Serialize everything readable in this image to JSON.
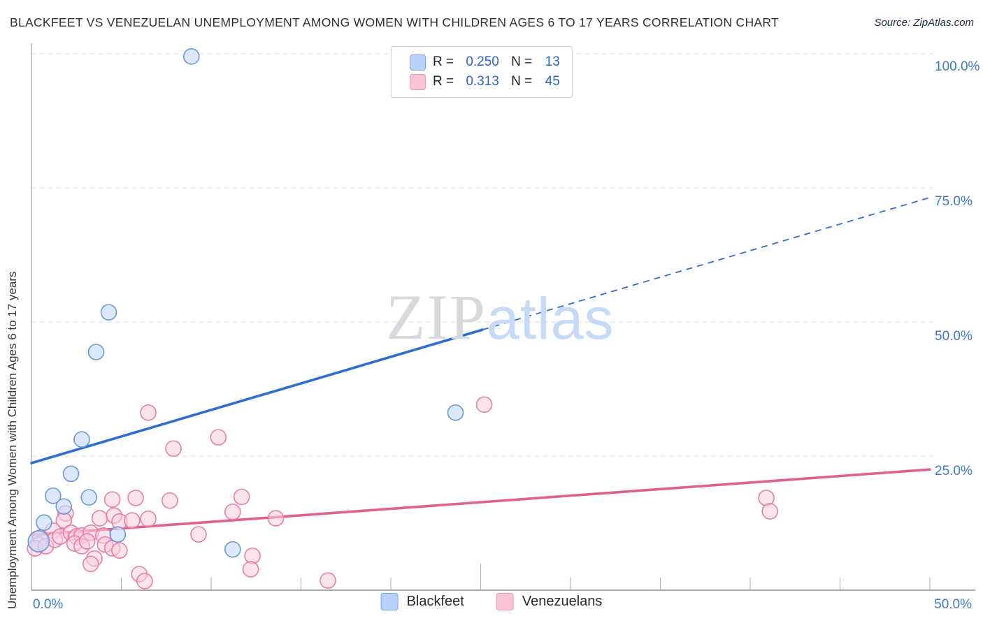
{
  "header": {
    "title": "BLACKFEET VS VENEZUELAN UNEMPLOYMENT AMONG WOMEN WITH CHILDREN AGES 6 TO 17 YEARS CORRELATION CHART",
    "source": "Source: ZipAtlas.com"
  },
  "watermark": {
    "zip": "ZIP",
    "atlas": "atlas"
  },
  "stats_legend": {
    "rows": [
      {
        "series": "Blackfeet",
        "r_label": "R =",
        "r": "0.250",
        "n_label": "N =",
        "n": "13",
        "swatch_fill": "#b9d2fb",
        "swatch_stroke": "#7ba4e9"
      },
      {
        "series": "Venezuelans",
        "r_label": "R =",
        "r": "0.313",
        "n_label": "N =",
        "n": "45",
        "swatch_fill": "#f9c4d7",
        "swatch_stroke": "#ef95ba"
      }
    ]
  },
  "y_axis": {
    "title": "Unemployment Among Women with Children Ages 6 to 17 years",
    "tick_labels": [
      "100.0%",
      "75.0%",
      "50.0%",
      "25.0%"
    ]
  },
  "x_axis": {
    "left_label": "0.0%",
    "right_label": "50.0%"
  },
  "bottom_legend": [
    {
      "label": "Blackfeet",
      "swatch_fill": "#b9d2fb",
      "swatch_stroke": "#7ba4e9"
    },
    {
      "label": "Venezuelans",
      "swatch_fill": "#f9c4d7",
      "swatch_stroke": "#ef95ba"
    }
  ],
  "chart_data": {
    "type": "scatter",
    "title": "BLACKFEET VS VENEZUELAN UNEMPLOYMENT AMONG WOMEN WITH CHILDREN AGES 6 TO 17 YEARS CORRELATION CHART",
    "xlabel": "",
    "ylabel": "Unemployment Among Women with Children Ages 6 to 17 years",
    "xlim": [
      0,
      50
    ],
    "ylim": [
      0,
      100
    ],
    "x_tick_step": 5,
    "gridlines_y": [
      25,
      50,
      75,
      100
    ],
    "grid": "dashed-horizontal",
    "legend_position": "bottom-center",
    "units": "percent",
    "series": [
      {
        "name": "Blackfeet",
        "R": 0.25,
        "N": 13,
        "point_fill": "rgba(201,220,250,0.65)",
        "point_stroke": "#6b99d6",
        "points": [
          [
            8.9,
            99.5
          ],
          [
            4.3,
            51.8
          ],
          [
            3.6,
            44.4
          ],
          [
            2.8,
            28.1
          ],
          [
            2.2,
            21.7
          ],
          [
            1.2,
            17.6
          ],
          [
            3.2,
            17.3
          ],
          [
            1.8,
            15.6
          ],
          [
            0.7,
            12.6
          ],
          [
            0.4,
            9.1,
            15
          ],
          [
            4.8,
            10.4
          ],
          [
            11.2,
            7.6
          ],
          [
            23.6,
            33.1
          ]
        ]
      },
      {
        "name": "Venezuelans",
        "R": 0.313,
        "N": 45,
        "point_fill": "rgba(250,206,223,0.55)",
        "point_stroke": "#e87da8",
        "points": [
          [
            1.9,
            14.3
          ],
          [
            1.8,
            13.0
          ],
          [
            1.2,
            11.1
          ],
          [
            0.5,
            9.8
          ],
          [
            0.4,
            8.5
          ],
          [
            0.2,
            7.8
          ],
          [
            0.8,
            8.2
          ],
          [
            1.3,
            9.4
          ],
          [
            1.6,
            10.0
          ],
          [
            2.2,
            10.7
          ],
          [
            2.5,
            10.0
          ],
          [
            2.8,
            10.2
          ],
          [
            2.4,
            8.7
          ],
          [
            2.8,
            8.2
          ],
          [
            3.3,
            10.7
          ],
          [
            3.1,
            9.1
          ],
          [
            3.8,
            13.4
          ],
          [
            4.0,
            10.2
          ],
          [
            4.1,
            8.5
          ],
          [
            3.5,
            5.9
          ],
          [
            3.3,
            4.9
          ],
          [
            4.5,
            7.8
          ],
          [
            4.9,
            7.4
          ],
          [
            4.6,
            13.9
          ],
          [
            4.5,
            16.9
          ],
          [
            5.8,
            17.2
          ],
          [
            7.7,
            16.7
          ],
          [
            4.9,
            12.8
          ],
          [
            5.6,
            13.0
          ],
          [
            6.5,
            13.3
          ],
          [
            9.3,
            10.4
          ],
          [
            6.5,
            33.1
          ],
          [
            7.9,
            26.4
          ],
          [
            10.4,
            28.5
          ],
          [
            11.7,
            17.4
          ],
          [
            11.2,
            14.6
          ],
          [
            13.6,
            13.4
          ],
          [
            12.3,
            6.4
          ],
          [
            12.2,
            3.9
          ],
          [
            16.5,
            1.8
          ],
          [
            6.0,
            3.0
          ],
          [
            6.3,
            1.7
          ],
          [
            25.2,
            34.6
          ],
          [
            40.9,
            17.2
          ],
          [
            41.1,
            14.7
          ]
        ]
      }
    ],
    "trend_lines": [
      {
        "series": "Blackfeet",
        "x_start": 0,
        "y_start": 23.7,
        "x_end": 50,
        "y_end": 73.2,
        "solid_until_x": 25.1,
        "color": "#2b6fd2",
        "style": "solid-then-dashed"
      },
      {
        "series": "Venezuelans",
        "x_start": 0,
        "y_start": 10.3,
        "x_end": 50,
        "y_end": 22.5,
        "color": "#e2608d",
        "style": "solid"
      }
    ]
  }
}
